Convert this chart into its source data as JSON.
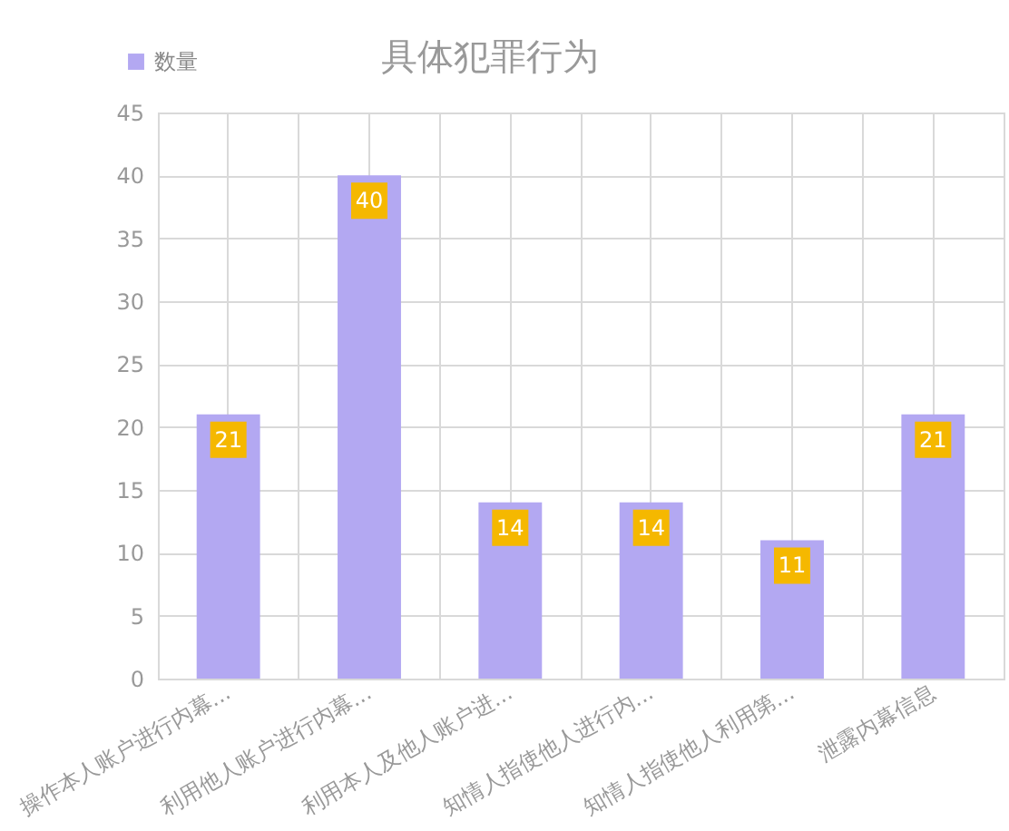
{
  "chart_data": {
    "type": "bar",
    "title": "具体犯罪行为",
    "categories": [
      "操作本人账户进行内幕...",
      "利用他人账户进行内幕...",
      "利用本人及他人账户进...",
      "知情人指使他人进行内...",
      "知情人指使他人利用第...",
      "泄露内幕信息"
    ],
    "series": [
      {
        "name": "数量",
        "color": "#b3a8f2",
        "values": [
          21,
          40,
          14,
          14,
          11,
          21
        ]
      }
    ],
    "ylim": [
      0,
      45
    ],
    "yticks": [
      0,
      5,
      10,
      15,
      20,
      25,
      30,
      35,
      40,
      45
    ],
    "grid": true,
    "legend": "top left",
    "data_labels": true
  }
}
